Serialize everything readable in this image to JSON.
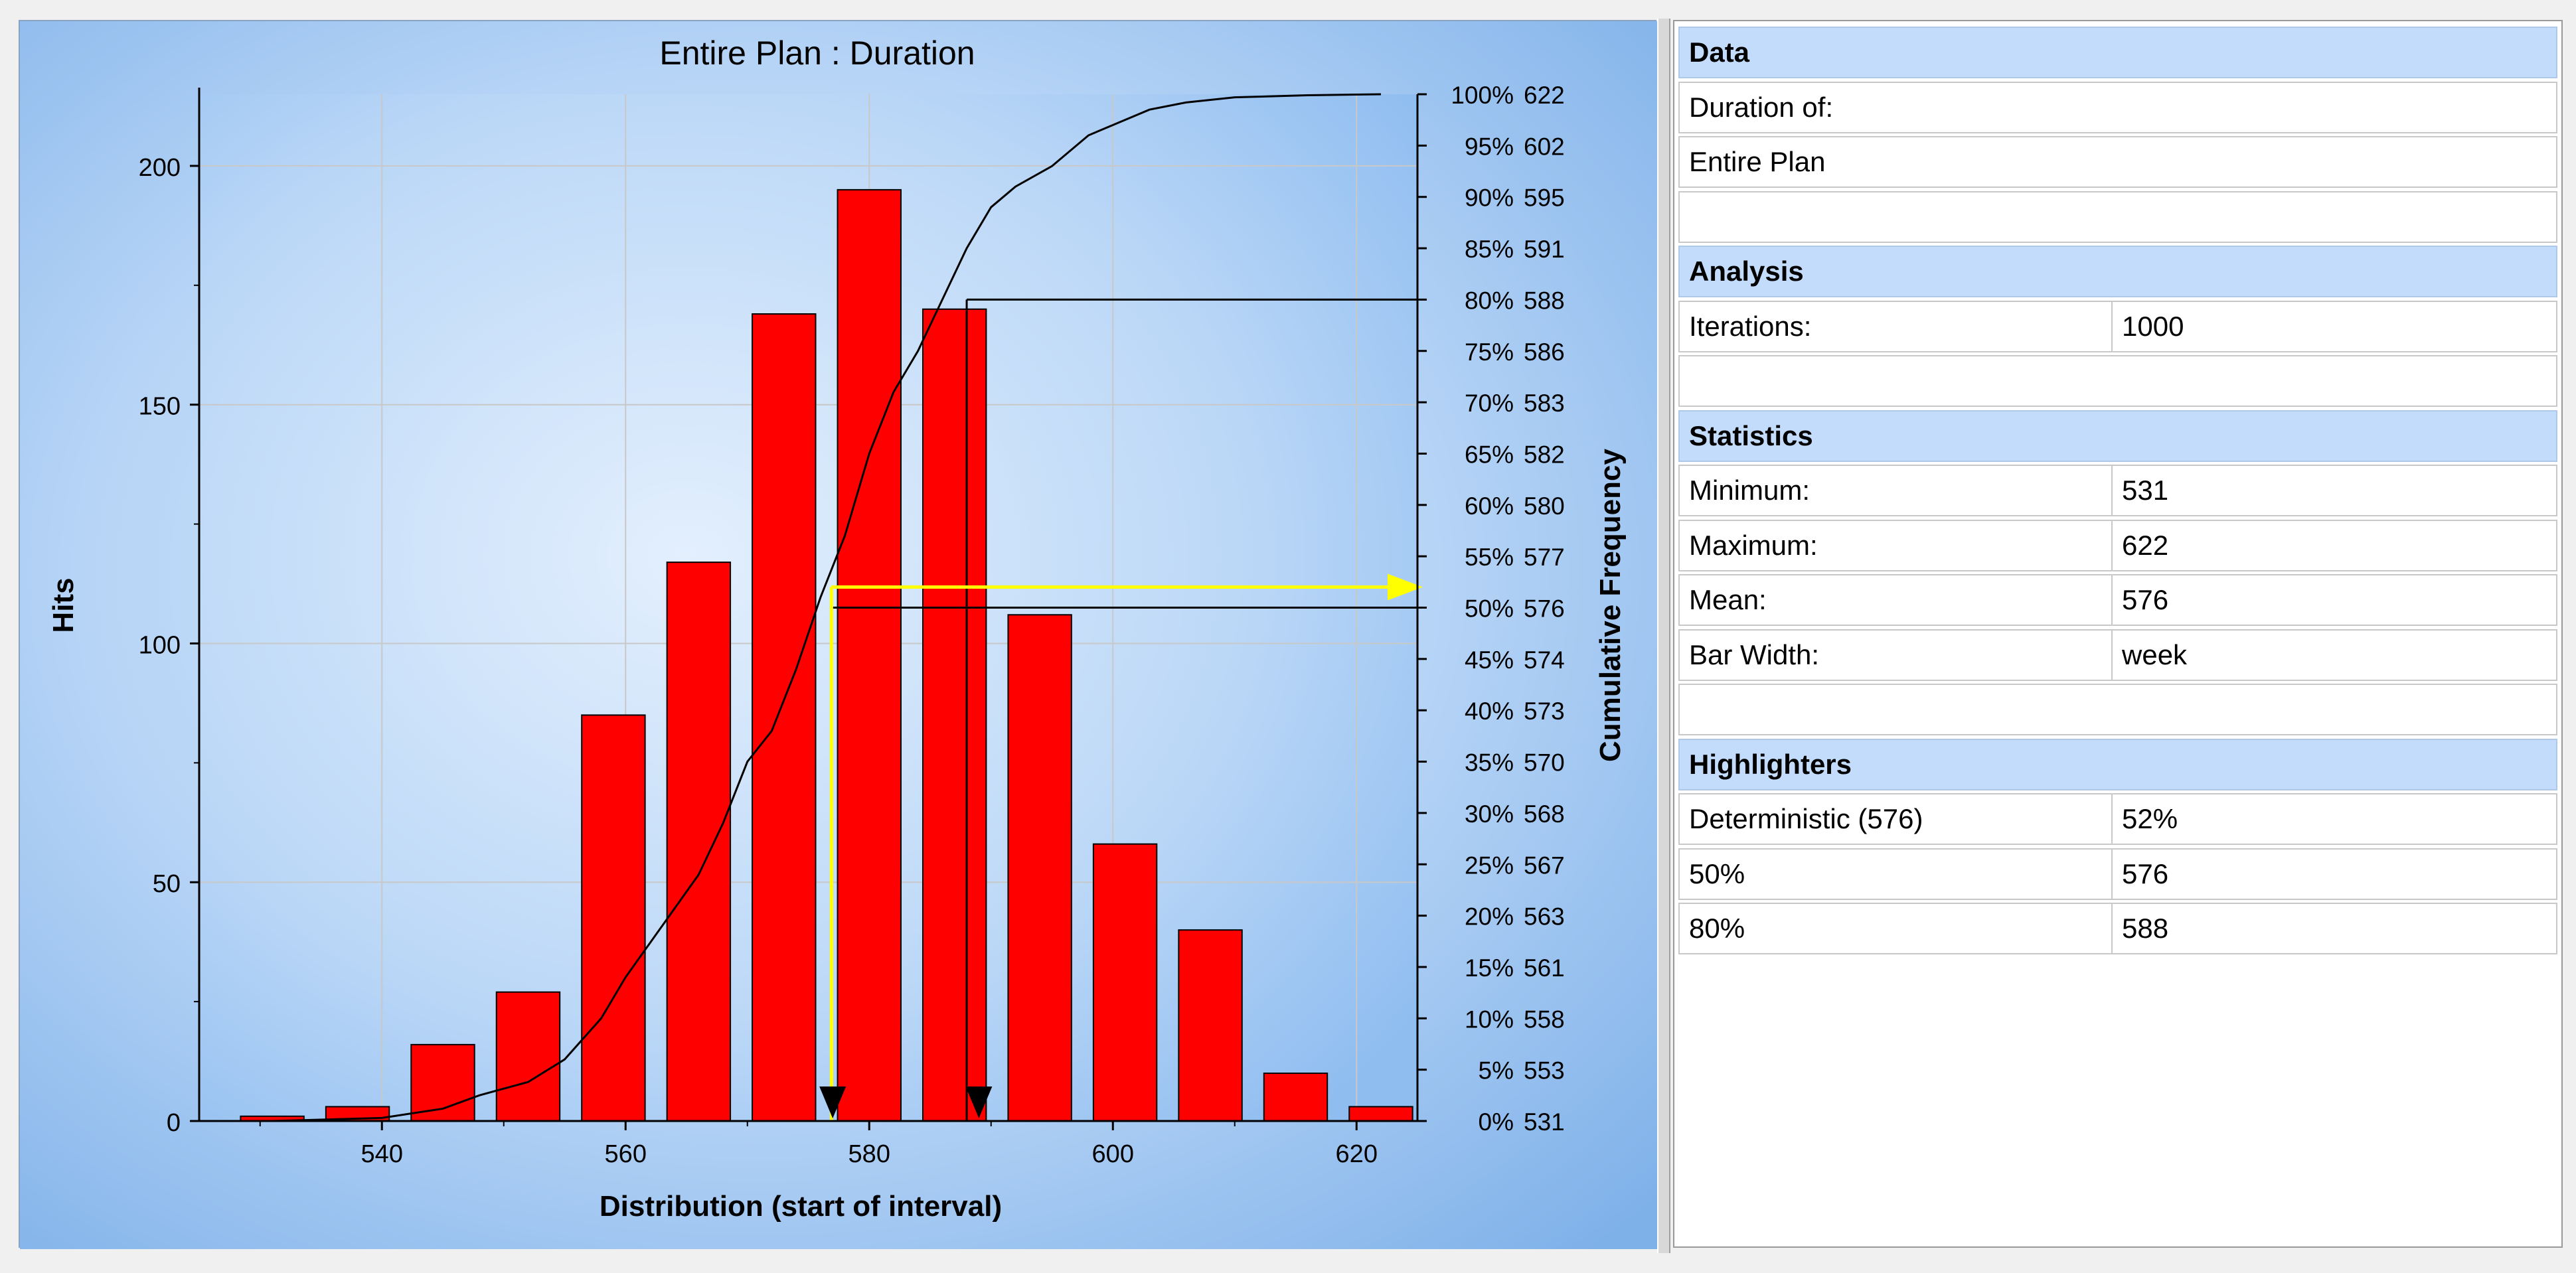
{
  "chart_data": {
    "type": "bar",
    "title": "Entire Plan : Duration",
    "xlabel": "Distribution (start of interval)",
    "ylabel": "Hits",
    "y2label": "Cumulative Frequency",
    "xlim": [
      525,
      625
    ],
    "ylim": [
      0,
      215
    ],
    "x_ticks": [
      540,
      560,
      580,
      600,
      620
    ],
    "y_ticks": [
      0,
      50,
      100,
      150,
      200
    ],
    "bar_color": "#ff0000",
    "bars": [
      {
        "x": 531,
        "value": 1
      },
      {
        "x": 538,
        "value": 3
      },
      {
        "x": 545,
        "value": 16
      },
      {
        "x": 552,
        "value": 27
      },
      {
        "x": 559,
        "value": 85
      },
      {
        "x": 566,
        "value": 117
      },
      {
        "x": 573,
        "value": 169
      },
      {
        "x": 580,
        "value": 195
      },
      {
        "x": 587,
        "value": 170
      },
      {
        "x": 594,
        "value": 106
      },
      {
        "x": 601,
        "value": 58
      },
      {
        "x": 608,
        "value": 40
      },
      {
        "x": 615,
        "value": 10
      },
      {
        "x": 622,
        "value": 3
      }
    ],
    "bar_width_days": 5.2,
    "cumulative_labels": [
      {
        "pct": "0%",
        "val": "531"
      },
      {
        "pct": "5%",
        "val": "553"
      },
      {
        "pct": "10%",
        "val": "558"
      },
      {
        "pct": "15%",
        "val": "561"
      },
      {
        "pct": "20%",
        "val": "563"
      },
      {
        "pct": "25%",
        "val": "567"
      },
      {
        "pct": "30%",
        "val": "568"
      },
      {
        "pct": "35%",
        "val": "570"
      },
      {
        "pct": "40%",
        "val": "573"
      },
      {
        "pct": "45%",
        "val": "574"
      },
      {
        "pct": "50%",
        "val": "576"
      },
      {
        "pct": "55%",
        "val": "577"
      },
      {
        "pct": "60%",
        "val": "580"
      },
      {
        "pct": "65%",
        "val": "582"
      },
      {
        "pct": "70%",
        "val": "583"
      },
      {
        "pct": "75%",
        "val": "586"
      },
      {
        "pct": "80%",
        "val": "588"
      },
      {
        "pct": "85%",
        "val": "591"
      },
      {
        "pct": "90%",
        "val": "595"
      },
      {
        "pct": "95%",
        "val": "602"
      },
      {
        "pct": "100%",
        "val": "622"
      }
    ],
    "cumulative_curve": [
      [
        531,
        0
      ],
      [
        540,
        0.3
      ],
      [
        545,
        1.2
      ],
      [
        548,
        2.5
      ],
      [
        552,
        3.8
      ],
      [
        555,
        6
      ],
      [
        558,
        10
      ],
      [
        560,
        14
      ],
      [
        563,
        19
      ],
      [
        566,
        24
      ],
      [
        568,
        29
      ],
      [
        570,
        35
      ],
      [
        572,
        38
      ],
      [
        574,
        44
      ],
      [
        576,
        51
      ],
      [
        578,
        57
      ],
      [
        580,
        65
      ],
      [
        582,
        71
      ],
      [
        584,
        75
      ],
      [
        586,
        80
      ],
      [
        588,
        85
      ],
      [
        590,
        89
      ],
      [
        592,
        91
      ],
      [
        595,
        93
      ],
      [
        598,
        96
      ],
      [
        600,
        97
      ],
      [
        603,
        98.5
      ],
      [
        606,
        99.2
      ],
      [
        610,
        99.7
      ],
      [
        616,
        99.9
      ],
      [
        622,
        100
      ]
    ],
    "highlighters": [
      {
        "x": 576,
        "pct": 52,
        "color": "#ffff00"
      },
      {
        "x": 588,
        "pct": 80,
        "color": "#000000"
      }
    ],
    "extra_line_pct": 50,
    "markers_x": [
      577,
      589
    ]
  },
  "panel": {
    "rows": [
      {
        "type": "header",
        "label": "Data"
      },
      {
        "type": "single",
        "label": "Duration of:"
      },
      {
        "type": "single",
        "label": "Entire Plan"
      },
      {
        "type": "single",
        "label": ""
      },
      {
        "type": "header",
        "label": "Analysis"
      },
      {
        "type": "pair",
        "label": "Iterations:",
        "value": "1000"
      },
      {
        "type": "single",
        "label": ""
      },
      {
        "type": "header",
        "label": "Statistics"
      },
      {
        "type": "pair",
        "label": "Minimum:",
        "value": "531"
      },
      {
        "type": "pair",
        "label": "Maximum:",
        "value": "622"
      },
      {
        "type": "pair",
        "label": "Mean:",
        "value": "576"
      },
      {
        "type": "pair",
        "label": "Bar Width:",
        "value": "week"
      },
      {
        "type": "single",
        "label": ""
      },
      {
        "type": "header",
        "label": "Highlighters"
      },
      {
        "type": "pair",
        "label": "Deterministic (576)",
        "value": "52%"
      },
      {
        "type": "pair",
        "label": "50%",
        "value": "576"
      },
      {
        "type": "pair",
        "label": "80%",
        "value": "588"
      }
    ]
  }
}
